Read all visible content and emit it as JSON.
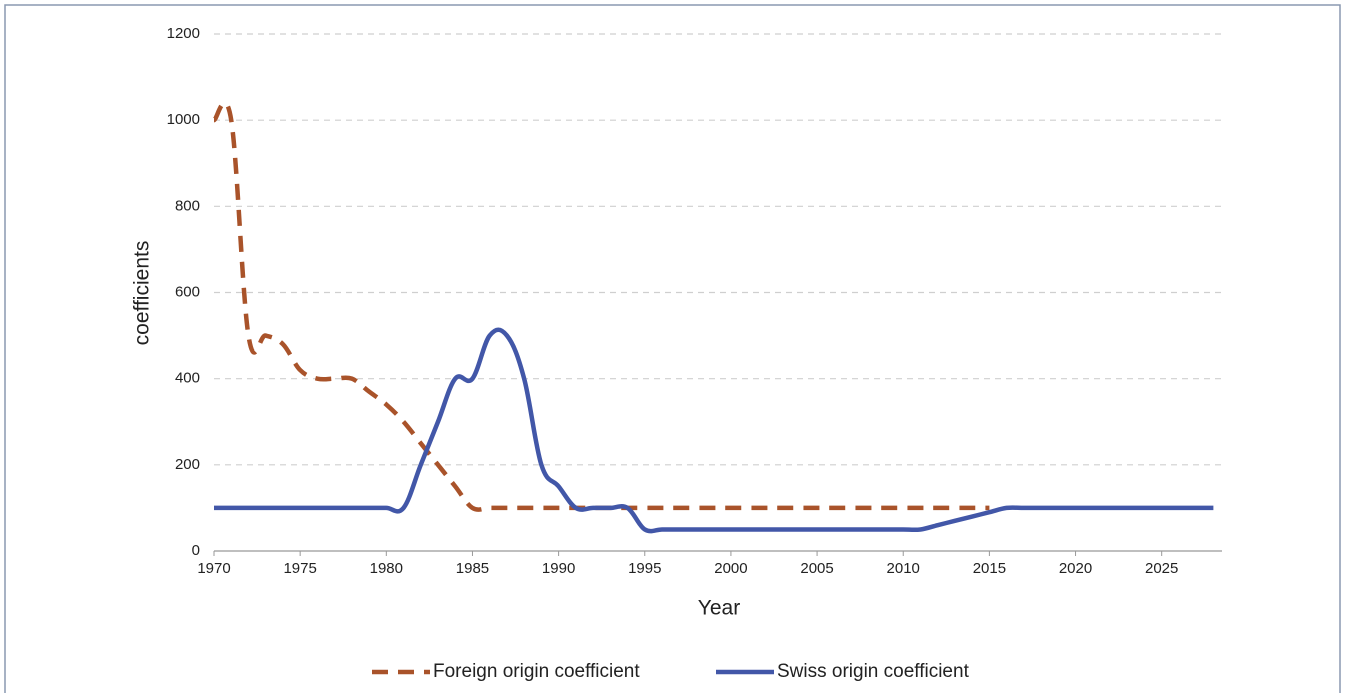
{
  "chart_data": {
    "type": "line",
    "x_label": "Year",
    "y_label": "coefficients",
    "x": [
      1970,
      1971,
      1972,
      1973,
      1974,
      1975,
      1976,
      1977,
      1978,
      1979,
      1980,
      1981,
      1982,
      1983,
      1984,
      1985,
      1986,
      1987,
      1988,
      1989,
      1990,
      1991,
      1992,
      1993,
      1994,
      1995,
      1996,
      1997,
      1998,
      1999,
      2000,
      2001,
      2002,
      2003,
      2004,
      2005,
      2006,
      2007,
      2008,
      2009,
      2010,
      2011,
      2012,
      2013,
      2014,
      2015,
      2016,
      2017,
      2018,
      2019,
      2020,
      2021,
      2022,
      2023,
      2024,
      2025,
      2026,
      2027,
      2028
    ],
    "series": [
      {
        "name": "Foreign origin coefficient",
        "color": "#a9532a",
        "dash": true,
        "values": [
          1000,
          1000,
          500,
          500,
          480,
          420,
          400,
          400,
          400,
          370,
          340,
          300,
          250,
          200,
          150,
          100,
          100,
          100,
          100,
          100,
          100,
          100,
          100,
          100,
          100,
          100,
          100,
          100,
          100,
          100,
          100,
          100,
          100,
          100,
          100,
          100,
          100,
          100,
          100,
          100,
          100,
          100,
          100,
          100,
          100,
          100,
          null,
          null,
          null,
          null,
          null,
          null,
          null,
          null,
          null,
          null,
          null,
          null,
          null
        ]
      },
      {
        "name": "Swiss origin coefficient",
        "color": "#4257a8",
        "dash": false,
        "values": [
          100,
          100,
          100,
          100,
          100,
          100,
          100,
          100,
          100,
          100,
          100,
          100,
          200,
          300,
          400,
          400,
          500,
          500,
          400,
          200,
          150,
          100,
          100,
          100,
          100,
          50,
          50,
          50,
          50,
          50,
          50,
          50,
          50,
          50,
          50,
          50,
          50,
          50,
          50,
          50,
          50,
          50,
          60,
          70,
          80,
          90,
          100,
          100,
          100,
          100,
          100,
          100,
          100,
          100,
          100,
          100,
          100,
          100,
          100
        ]
      }
    ],
    "xlim": [
      1970,
      2028.5
    ],
    "xticks": [
      1970,
      1975,
      1980,
      1985,
      1990,
      1995,
      2000,
      2005,
      2010,
      2015,
      2020,
      2025
    ],
    "ylim": [
      0,
      1200
    ],
    "yticks": [
      0,
      200,
      400,
      600,
      800,
      1000,
      1200
    ],
    "grid": true,
    "legend": "bottom"
  }
}
